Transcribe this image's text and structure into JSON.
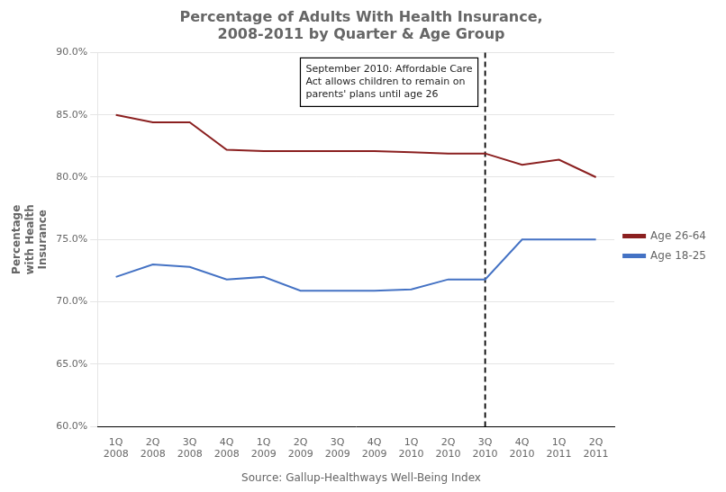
{
  "chart_data": {
    "type": "line",
    "title": "Percentage of Adults With Health Insurance,\n2008-2011 by Quarter & Age Group",
    "ylabel": "Percentage\nwith Health\nInsurance",
    "categories": [
      "1Q\n2008",
      "2Q\n2008",
      "3Q\n2008",
      "4Q\n2008",
      "1Q\n2009",
      "2Q\n2009",
      "3Q\n2009",
      "4Q\n2009",
      "1Q\n2010",
      "2Q\n2010",
      "3Q\n2010",
      "4Q\n2010",
      "1Q\n2011",
      "2Q\n2011"
    ],
    "series": [
      {
        "name": "Age 26-64",
        "color": "#8B2020",
        "values": [
          0.85,
          0.844,
          0.844,
          0.822,
          0.821,
          0.821,
          0.821,
          0.821,
          0.82,
          0.819,
          0.819,
          0.81,
          0.814,
          0.8
        ]
      },
      {
        "name": "Age 18-25",
        "color": "#4472C4",
        "values": [
          0.72,
          0.73,
          0.728,
          0.718,
          0.72,
          0.709,
          0.709,
          0.709,
          0.71,
          0.718,
          0.718,
          0.75,
          0.75,
          0.75
        ]
      }
    ],
    "ylim": [
      0.6,
      0.9
    ],
    "yticks": [
      {
        "value": 0.6,
        "label": "60.0%"
      },
      {
        "value": 0.65,
        "label": "65.0%"
      },
      {
        "value": 0.7,
        "label": "70.0%"
      },
      {
        "value": 0.75,
        "label": "75.0%"
      },
      {
        "value": 0.8,
        "label": "80.0%"
      },
      {
        "value": 0.85,
        "label": "85.0%"
      },
      {
        "value": 0.9,
        "label": "90.0%"
      }
    ],
    "grid": "y",
    "legend": "right",
    "vline": {
      "x": "3Q\n2010",
      "line_style": "dashed"
    },
    "annotation": {
      "text": "September 2010: Affordable Care\nAct allows children to remain on\nparents' plans until age 26",
      "x": "3Q\n2010"
    },
    "source": "Source: Gallup-Healthways Well-Being Index"
  }
}
